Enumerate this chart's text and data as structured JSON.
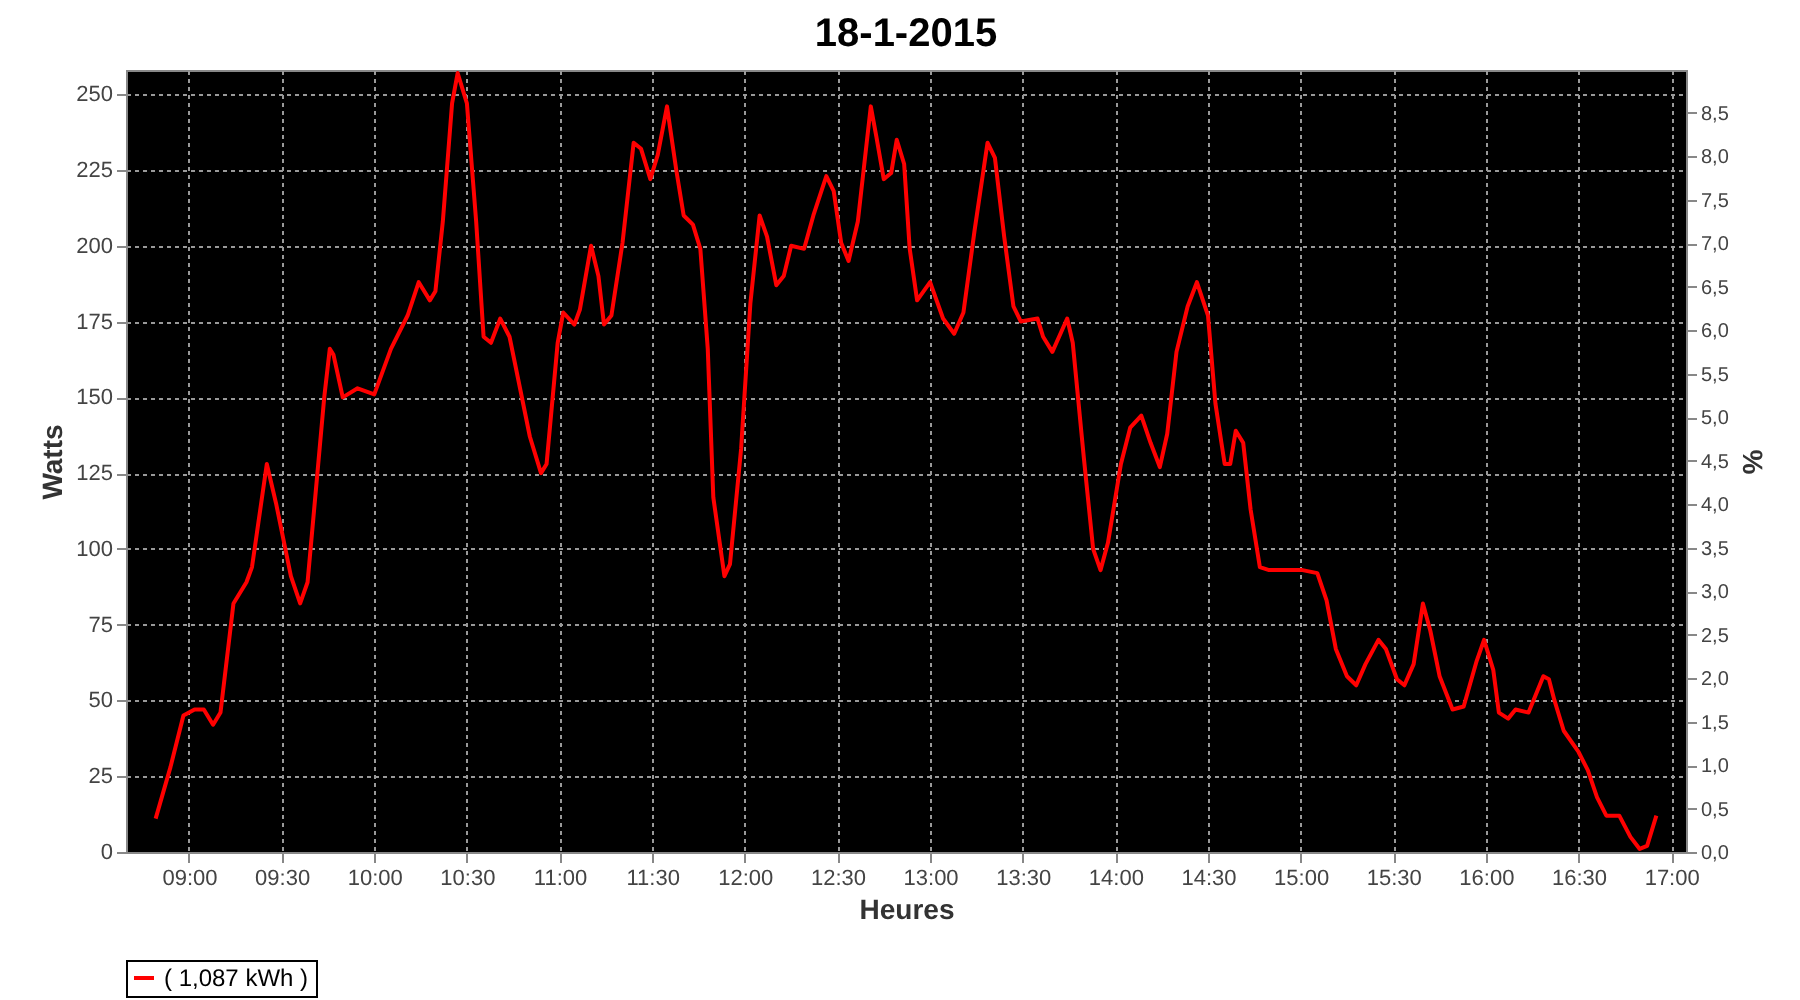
{
  "chart_data": {
    "type": "line",
    "title": "18-1-2015",
    "xlabel": "Heures",
    "ylabel": "Watts",
    "y2label": "%",
    "xlim": [
      8.66,
      17.08
    ],
    "xticks": [
      {
        "value": 9,
        "label": "09:00"
      },
      {
        "value": 9.5,
        "label": "09:30"
      },
      {
        "value": 10,
        "label": "10:00"
      },
      {
        "value": 10.5,
        "label": "10:30"
      },
      {
        "value": 11,
        "label": "11:00"
      },
      {
        "value": 11.5,
        "label": "11:30"
      },
      {
        "value": 12,
        "label": "12:00"
      },
      {
        "value": 12.5,
        "label": "12:30"
      },
      {
        "value": 13,
        "label": "13:00"
      },
      {
        "value": 13.5,
        "label": "13:30"
      },
      {
        "value": 14,
        "label": "14:00"
      },
      {
        "value": 14.5,
        "label": "14:30"
      },
      {
        "value": 15,
        "label": "15:00"
      },
      {
        "value": 15.5,
        "label": "15:30"
      },
      {
        "value": 16,
        "label": "16:00"
      },
      {
        "value": 16.5,
        "label": "16:30"
      },
      {
        "value": 17,
        "label": "17:00"
      }
    ],
    "ylim": [
      0,
      258
    ],
    "yticks": [
      0,
      25,
      50,
      75,
      100,
      125,
      150,
      175,
      200,
      225,
      250
    ],
    "y2lim": [
      0,
      8.99
    ],
    "y2ticks": [
      {
        "value": 0,
        "label": "0,0"
      },
      {
        "value": 0.5,
        "label": "0,5"
      },
      {
        "value": 1,
        "label": "1,0"
      },
      {
        "value": 1.5,
        "label": "1,5"
      },
      {
        "value": 2,
        "label": "2,0"
      },
      {
        "value": 2.5,
        "label": "2,5"
      },
      {
        "value": 3,
        "label": "3,0"
      },
      {
        "value": 3.5,
        "label": "3,5"
      },
      {
        "value": 4,
        "label": "4,0"
      },
      {
        "value": 4.5,
        "label": "4,5"
      },
      {
        "value": 5,
        "label": "5,0"
      },
      {
        "value": 5.5,
        "label": "5,5"
      },
      {
        "value": 6,
        "label": "6,0"
      },
      {
        "value": 6.5,
        "label": "6,5"
      },
      {
        "value": 7,
        "label": "7,0"
      },
      {
        "value": 7.5,
        "label": "7,5"
      },
      {
        "value": 8,
        "label": "8,0"
      },
      {
        "value": 8.5,
        "label": "8,5"
      }
    ],
    "grid": true,
    "legend": "bottom",
    "line_style": "solid",
    "series": [
      {
        "name": "( 1,087 kWh )",
        "color": "#ff0000",
        "x": [
          8.82,
          8.9,
          8.97,
          9.03,
          9.08,
          9.13,
          9.17,
          9.24,
          9.31,
          9.34,
          9.42,
          9.47,
          9.55,
          9.6,
          9.64,
          9.73,
          9.76,
          9.78,
          9.83,
          9.91,
          10.0,
          10.09,
          10.18,
          10.24,
          10.3,
          10.33,
          10.37,
          10.42,
          10.45,
          10.5,
          10.55,
          10.59,
          10.63,
          10.68,
          10.73,
          10.84,
          10.9,
          10.93,
          10.99,
          11.02,
          11.08,
          11.11,
          11.17,
          11.21,
          11.24,
          11.28,
          11.34,
          11.4,
          11.44,
          11.49,
          11.53,
          11.58,
          11.63,
          11.67,
          11.72,
          11.76,
          11.8,
          11.83,
          11.89,
          11.92,
          11.98,
          12.03,
          12.08,
          12.12,
          12.17,
          12.21,
          12.25,
          12.32,
          12.37,
          12.44,
          12.48,
          12.52,
          12.56,
          12.61,
          12.68,
          12.71,
          12.75,
          12.79,
          12.82,
          12.86,
          12.89,
          12.93,
          13.0,
          13.07,
          13.13,
          13.18,
          13.24,
          13.31,
          13.35,
          13.4,
          13.45,
          13.49,
          13.58,
          13.61,
          13.66,
          13.74,
          13.77,
          13.83,
          13.88,
          13.92,
          13.96,
          14.03,
          14.08,
          14.14,
          14.19,
          14.24,
          14.28,
          14.33,
          14.39,
          14.44,
          14.5,
          14.54,
          14.59,
          14.62,
          14.65,
          14.69,
          14.73,
          14.78,
          14.83,
          15.01,
          15.09,
          15.14,
          15.19,
          15.25,
          15.3,
          15.35,
          15.42,
          15.46,
          15.52,
          15.56,
          15.61,
          15.66,
          15.7,
          15.75,
          15.82,
          15.88,
          15.95,
          15.99,
          16.04,
          16.07,
          16.12,
          16.16,
          16.23,
          16.31,
          16.34,
          16.37,
          16.42,
          16.5,
          16.55,
          16.6,
          16.65,
          16.72,
          16.78,
          16.83,
          16.87,
          16.92
        ],
        "values": [
          11,
          28,
          45,
          47,
          47,
          42,
          46,
          82,
          89,
          94,
          128,
          115,
          91,
          82,
          89,
          150,
          166,
          164,
          150,
          153,
          151,
          166,
          177,
          188,
          182,
          185,
          208,
          247,
          257,
          247,
          208,
          170,
          168,
          176,
          170,
          137,
          125,
          128,
          168,
          178,
          174,
          179,
          200,
          190,
          174,
          177,
          201,
          234,
          232,
          222,
          230,
          246,
          225,
          210,
          207,
          199,
          166,
          117,
          91,
          95,
          133,
          181,
          210,
          203,
          187,
          190,
          200,
          199,
          210,
          223,
          218,
          201,
          195,
          208,
          246,
          236,
          222,
          224,
          235,
          227,
          199,
          182,
          188,
          176,
          171,
          178,
          205,
          234,
          229,
          203,
          180,
          175,
          176,
          170,
          165,
          176,
          168,
          130,
          100,
          93,
          102,
          128,
          140,
          144,
          135,
          127,
          138,
          165,
          180,
          188,
          177,
          148,
          128,
          128,
          139,
          135,
          113,
          94,
          93,
          93,
          92,
          83,
          67,
          58,
          55,
          62,
          70,
          67,
          57,
          55,
          62,
          82,
          73,
          58,
          47,
          48,
          63,
          70,
          60,
          46,
          44,
          47,
          46,
          58,
          57,
          50,
          40,
          33,
          27,
          18,
          12,
          12,
          5,
          1,
          2,
          12
        ]
      }
    ]
  }
}
